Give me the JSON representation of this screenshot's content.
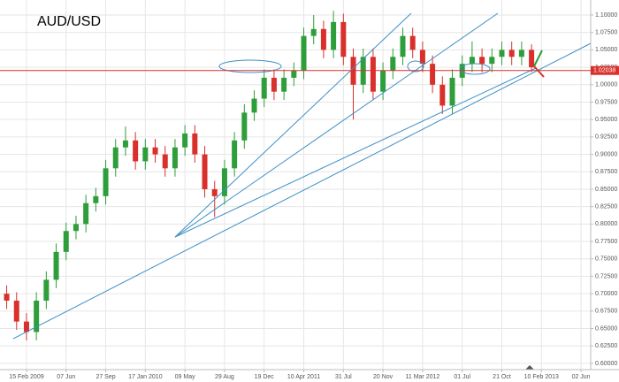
{
  "chart_data": {
    "type": "candlestick",
    "title": "AUD/USD",
    "x": [
      -8,
      -4,
      0,
      4,
      8,
      12,
      16,
      20,
      24,
      28,
      32,
      36,
      40,
      44,
      48,
      52,
      56,
      60,
      64,
      68,
      72,
      76,
      80,
      84,
      88,
      92,
      96,
      100,
      104,
      108,
      112,
      116,
      120,
      124,
      128,
      132,
      136,
      140,
      144,
      148,
      152,
      156,
      160,
      164,
      168,
      172,
      176,
      180,
      184,
      188,
      192,
      196,
      200,
      204
    ],
    "open": [
      0.7,
      0.69,
      0.66,
      0.645,
      0.69,
      0.72,
      0.76,
      0.79,
      0.8,
      0.83,
      0.84,
      0.88,
      0.91,
      0.92,
      0.89,
      0.91,
      0.9,
      0.88,
      0.91,
      0.93,
      0.9,
      0.85,
      0.84,
      0.88,
      0.92,
      0.96,
      0.98,
      1.01,
      0.99,
      1.01,
      1.02,
      1.07,
      1.08,
      1.05,
      1.09,
      1.04,
      1.0,
      1.04,
      0.99,
      1.02,
      1.04,
      1.07,
      1.05,
      1.03,
      1.0,
      0.97,
      1.01,
      1.03,
      1.04,
      1.03,
      1.04,
      1.05,
      1.04,
      1.05
    ],
    "high": [
      0.712,
      0.702,
      0.672,
      0.702,
      0.732,
      0.772,
      0.802,
      0.812,
      0.842,
      0.852,
      0.892,
      0.922,
      0.94,
      0.932,
      0.922,
      0.922,
      0.912,
      0.922,
      0.942,
      0.942,
      0.912,
      0.862,
      0.892,
      0.932,
      0.972,
      0.992,
      1.022,
      1.022,
      1.022,
      1.032,
      1.082,
      1.1,
      1.092,
      1.106,
      1.102,
      1.052,
      1.052,
      1.052,
      1.032,
      1.052,
      1.082,
      1.082,
      1.062,
      1.042,
      1.012,
      1.022,
      1.042,
      1.062,
      1.052,
      1.052,
      1.062,
      1.062,
      1.062,
      1.058
    ],
    "low": [
      0.678,
      0.648,
      0.633,
      0.633,
      0.678,
      0.708,
      0.748,
      0.778,
      0.788,
      0.818,
      0.828,
      0.868,
      0.898,
      0.878,
      0.878,
      0.888,
      0.868,
      0.868,
      0.898,
      0.888,
      0.838,
      0.81,
      0.828,
      0.868,
      0.908,
      0.948,
      0.968,
      0.978,
      0.978,
      0.998,
      1.008,
      1.058,
      1.038,
      1.038,
      1.028,
      0.95,
      0.988,
      0.978,
      0.978,
      1.008,
      1.028,
      1.038,
      1.018,
      0.988,
      0.958,
      0.958,
      0.998,
      1.018,
      1.018,
      1.018,
      1.028,
      1.028,
      1.028,
      1.018
    ],
    "close": [
      0.69,
      0.66,
      0.645,
      0.69,
      0.72,
      0.76,
      0.79,
      0.8,
      0.83,
      0.84,
      0.88,
      0.91,
      0.92,
      0.89,
      0.91,
      0.9,
      0.88,
      0.91,
      0.93,
      0.9,
      0.85,
      0.84,
      0.88,
      0.92,
      0.96,
      0.98,
      1.01,
      0.99,
      1.01,
      1.02,
      1.07,
      1.08,
      1.05,
      1.09,
      1.04,
      1.0,
      1.04,
      0.99,
      1.02,
      1.04,
      1.07,
      1.05,
      1.03,
      1.0,
      0.97,
      1.01,
      1.03,
      1.04,
      1.03,
      1.04,
      1.05,
      1.04,
      1.05,
      1.025
    ],
    "up_color": "#2e9e3a",
    "down_color": "#d9302c",
    "last_price": 1.02038,
    "xlim": [
      -10.7,
      227.9
    ],
    "xticks": [
      {
        "value": 0,
        "label": "15 Feb 2009"
      },
      {
        "value": 16,
        "label": "07 Jun"
      },
      {
        "value": 32,
        "label": "27 Sep"
      },
      {
        "value": 48,
        "label": "17 Jan 2010"
      },
      {
        "value": 64,
        "label": "09 May"
      },
      {
        "value": 80,
        "label": "29 Aug"
      },
      {
        "value": 96,
        "label": "19 Dec"
      },
      {
        "value": 112,
        "label": "10 Apr 2011"
      },
      {
        "value": 128,
        "label": "31 Jul"
      },
      {
        "value": 144,
        "label": "20 Nov"
      },
      {
        "value": 160,
        "label": "11 Mar 2012"
      },
      {
        "value": 176,
        "label": "01 Jul"
      },
      {
        "value": 192,
        "label": "21 Oct"
      },
      {
        "value": 208,
        "label": "10 Feb 2013"
      },
      {
        "value": 224,
        "label": "02 Jun"
      }
    ],
    "ylim": [
      0.591,
      1.1216
    ],
    "yticks": [
      {
        "value": 0.6,
        "label": "0.60000"
      },
      {
        "value": 0.625,
        "label": "0.62500"
      },
      {
        "value": 0.65,
        "label": "0.65000"
      },
      {
        "value": 0.675,
        "label": "0.67500"
      },
      {
        "value": 0.7,
        "label": "0.70000"
      },
      {
        "value": 0.725,
        "label": "0.72500"
      },
      {
        "value": 0.75,
        "label": "0.75000"
      },
      {
        "value": 0.775,
        "label": "0.77500"
      },
      {
        "value": 0.8,
        "label": "0.80000"
      },
      {
        "value": 0.825,
        "label": "0.82500"
      },
      {
        "value": 0.85,
        "label": "0.85000"
      },
      {
        "value": 0.875,
        "label": "0.87500"
      },
      {
        "value": 0.9,
        "label": "0.90000"
      },
      {
        "value": 0.925,
        "label": "0.92500"
      },
      {
        "value": 0.95,
        "label": "0.95000"
      },
      {
        "value": 0.975,
        "label": "0.97500"
      },
      {
        "value": 1.0,
        "label": "1.00000"
      },
      {
        "value": 1.025,
        "label": "1.02500"
      },
      {
        "value": 1.05,
        "label": "1.05000"
      },
      {
        "value": 1.075,
        "label": "1.07500"
      },
      {
        "value": 1.1,
        "label": "1.10000"
      }
    ],
    "grid": true
  }
}
